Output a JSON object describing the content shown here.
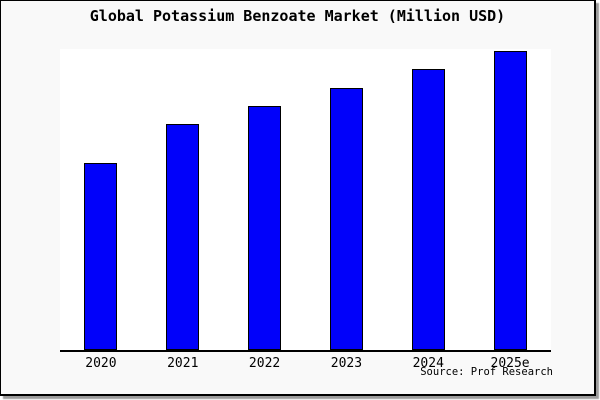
{
  "chart_data": {
    "type": "bar",
    "title": "Global Potassium Benzoate Market (Million USD)",
    "categories": [
      "2020",
      "2021",
      "2022",
      "2023",
      "2024",
      "2025e"
    ],
    "values": [
      62.6,
      75.4,
      81.6,
      87.6,
      93.8,
      100
    ],
    "note": "No y-axis or value labels shown; values are relative bar heights indexed to 2025e = 100",
    "xlabel": "",
    "ylabel": "",
    "ylim": [
      0,
      100.6
    ],
    "grid": false,
    "legend": false,
    "bar_color": "#0101fa",
    "bar_edge_color": "#000000"
  },
  "source_note": "Source: Prof Research",
  "colors": {
    "figure_background": "#f9f9f9",
    "plot_background": "#ffffff",
    "axis_line": "#000000",
    "frame_border": "#000000",
    "shadow": "#9b9b9b",
    "text": "#000000"
  }
}
